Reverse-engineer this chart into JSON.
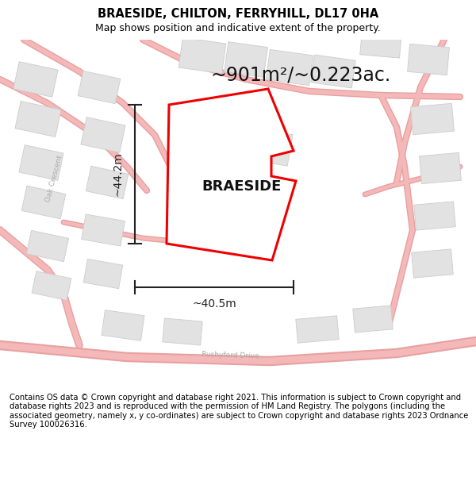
{
  "title": "BRAESIDE, CHILTON, FERRYHILL, DL17 0HA",
  "subtitle": "Map shows position and indicative extent of the property.",
  "footer": "Contains OS data © Crown copyright and database right 2021. This information is subject to Crown copyright and database rights 2023 and is reproduced with the permission of HM Land Registry. The polygons (including the associated geometry, namely x, y co-ordinates) are subject to Crown copyright and database rights 2023 Ordnance Survey 100026316.",
  "area_label": "~901m²/~0.223ac.",
  "property_label": "BRAESIDE",
  "dim_h": "~40.5m",
  "dim_v": "~44.2m",
  "bg_color": "#ffffff",
  "map_bg": "#ffffff",
  "road_color": "#f5b8b8",
  "road_edge": "#e8a0a0",
  "building_fill": "#e2e2e2",
  "building_edge": "#cccccc",
  "plot_color": "#ee0000",
  "plot_linewidth": 2.2,
  "dim_color": "#222222",
  "title_fontsize": 10.5,
  "subtitle_fontsize": 9,
  "footer_fontsize": 7.2,
  "area_fontsize": 17,
  "label_fontsize": 13,
  "dim_fontsize": 10
}
